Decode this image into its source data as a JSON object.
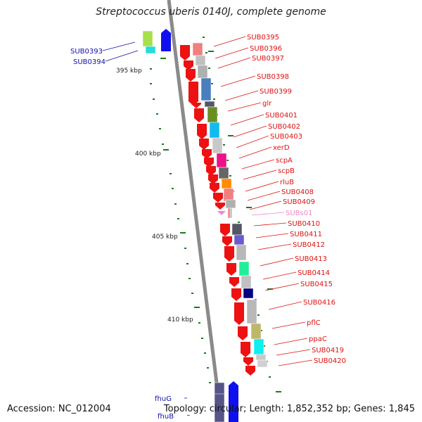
{
  "title": "Streptococcus uberis 0140J, complete genome",
  "footer": {
    "accession": "Accession: NC_012004",
    "topology": "Topology: circular; Length: 1,852,352 bp; Genes: 1,845"
  },
  "colors": {
    "backbone": "#8a8a8a",
    "forward_arrow": "#1010ee",
    "reverse_arrow": "#ee1111",
    "rna_arrow": "#ee88dd",
    "gene_label": "#dd1111",
    "forward_label": "#1111aa",
    "rna_label": "#ee88cc",
    "scale_tick": "#1e7a1e"
  },
  "scale_labels": [
    "395 kbp",
    "400 kbp",
    "405 kbp",
    "410 kbp"
  ],
  "genes": [
    {
      "label": "SUB0393",
      "strand": "forward",
      "cog_color": "#a6e04a"
    },
    {
      "label": "SUB0394",
      "strand": "forward",
      "cog_color": "#22dddd"
    },
    {
      "label": "SUB0395",
      "strand": "reverse",
      "cog_color": "#f08080"
    },
    {
      "label": "SUB0396",
      "strand": "reverse",
      "cog_color": "#c0c0c0"
    },
    {
      "label": "SUB0397",
      "strand": "reverse",
      "cog_color": "#b0b0b0"
    },
    {
      "label": "SUB0398",
      "strand": "reverse",
      "cog_color": "#4a7fbf"
    },
    {
      "label": "SUB0399",
      "strand": "reverse",
      "cog_color": "#555566"
    },
    {
      "label": "glr",
      "strand": "reverse",
      "cog_color": "#6b8e23"
    },
    {
      "label": "SUB0401",
      "strand": "reverse",
      "cog_color": "#11bbee"
    },
    {
      "label": "SUB0402",
      "strand": "reverse",
      "cog_color": "#c8c8c8"
    },
    {
      "label": "SUB0403",
      "strand": "reverse",
      "cog_color": "#ee1188"
    },
    {
      "label": "xerD",
      "strand": "reverse",
      "cog_color": "#666666"
    },
    {
      "label": "scpA",
      "strand": "reverse",
      "cog_color": "#ff8c00"
    },
    {
      "label": "scpB",
      "strand": "reverse",
      "cog_color": "#f08080"
    },
    {
      "label": "rluB",
      "strand": "reverse",
      "cog_color": "#b0b0b0"
    },
    {
      "label": "SUB0408",
      "strand": "reverse",
      "cog_color": "#f08080"
    },
    {
      "label": "SUB0409",
      "strand": "reverse",
      "cog_color": "#c0c0c0"
    },
    {
      "label": "SUBs01",
      "strand": "rna",
      "cog_color": "#ffffff"
    },
    {
      "label": "SUB0410",
      "strand": "reverse",
      "cog_color": "#555566"
    },
    {
      "label": "SUB0411",
      "strand": "reverse",
      "cog_color": "#6a5acd"
    },
    {
      "label": "SUB0412",
      "strand": "reverse",
      "cog_color": "#b8b8b8"
    },
    {
      "label": "SUB0413",
      "strand": "reverse",
      "cog_color": "#22ee99"
    },
    {
      "label": "SUB0414",
      "strand": "reverse",
      "cog_color": "#c0c0c0"
    },
    {
      "label": "SUB0415",
      "strand": "reverse",
      "cog_color": "#000080"
    },
    {
      "label": "SUB0416",
      "strand": "reverse",
      "cog_color": "#b8b8b8"
    },
    {
      "label": "pflC",
      "strand": "reverse",
      "cog_color": "#bdb76b"
    },
    {
      "label": "ppaC",
      "strand": "reverse",
      "cog_color": "#11eeee"
    },
    {
      "label": "SUB0419",
      "strand": "reverse",
      "cog_color": "#c8c8c8"
    },
    {
      "label": "SUB0420",
      "strand": "reverse",
      "cog_color": "#d0d0d0"
    },
    {
      "label": "fhuG",
      "strand": "forward",
      "cog_color": "#555588"
    },
    {
      "label": "fhuB",
      "strand": "forward",
      "cog_color": "#555588"
    }
  ]
}
